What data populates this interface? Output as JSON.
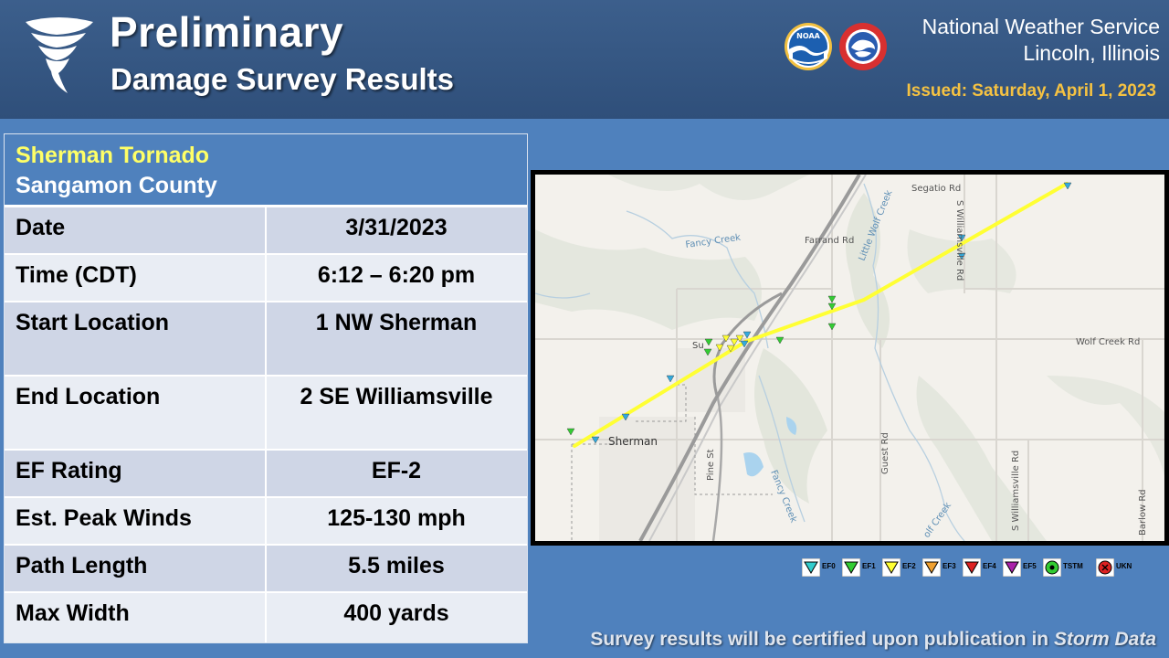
{
  "header": {
    "title": "Preliminary",
    "subtitle": "Damage Survey Results",
    "office_name": "National Weather Service",
    "office_location": "Lincoln, Illinois",
    "issued": "Issued:  Saturday, April 1, 2023"
  },
  "summary": {
    "tornado_name": "Sherman Tornado",
    "county": "Sangamon County",
    "rows": [
      {
        "label": "Date",
        "value": "3/31/2023"
      },
      {
        "label": "Time (CDT)",
        "value": "6:12 – 6:20 pm"
      },
      {
        "label": "Start Location",
        "value": "1 NW Sherman"
      },
      {
        "label": "End Location",
        "value": "2 SE Williamsville"
      },
      {
        "label": "EF Rating",
        "value": "EF-2"
      },
      {
        "label": "Est. Peak Winds",
        "value": "125-130 mph"
      },
      {
        "label": "Path Length",
        "value": "5.5 miles"
      },
      {
        "label": "Max Width",
        "value": "400 yards"
      }
    ]
  },
  "map": {
    "labels": {
      "segatio_rd": "Segatio Rd",
      "s_williamsville_rd_north": "S Williamsville Rd",
      "little_wolf_creek": "Little Wolf Creek",
      "fancy_creek_north": "Fancy Creek",
      "farrand_rd": "Farrand Rd",
      "wolf_creek_rd": "Wolf Creek Rd",
      "sherman": "Sherman",
      "guest_rd": "Guest Rd",
      "s_williamsville_rd_south": "S Williamsville Rd",
      "barlow_rd": "Barlow Rd",
      "fancy_creek_south": "Fancy Creek",
      "wolf_creek_south": "olf Creek",
      "pine_st": "Pine St",
      "town_partial": "Su"
    },
    "colors": {
      "track": "#ffff33",
      "ef0": "#33cccc",
      "ef1": "#33cc33",
      "ef2": "#ffff33",
      "ef3": "#f0a030",
      "ef4": "#dd2222",
      "ef5": "#aa22aa",
      "tstm": "#33cc33",
      "ukn": "#dd2222"
    }
  },
  "legend": {
    "items": [
      {
        "label": "EF0"
      },
      {
        "label": "EF1"
      },
      {
        "label": "EF2"
      },
      {
        "label": "EF3"
      },
      {
        "label": "EF4"
      },
      {
        "label": "EF5"
      },
      {
        "label": "TSTM"
      },
      {
        "label": "UKN"
      }
    ]
  },
  "footer": {
    "note_prefix": "Survey results will be certified upon publication in ",
    "note_italic": "Storm Data"
  }
}
